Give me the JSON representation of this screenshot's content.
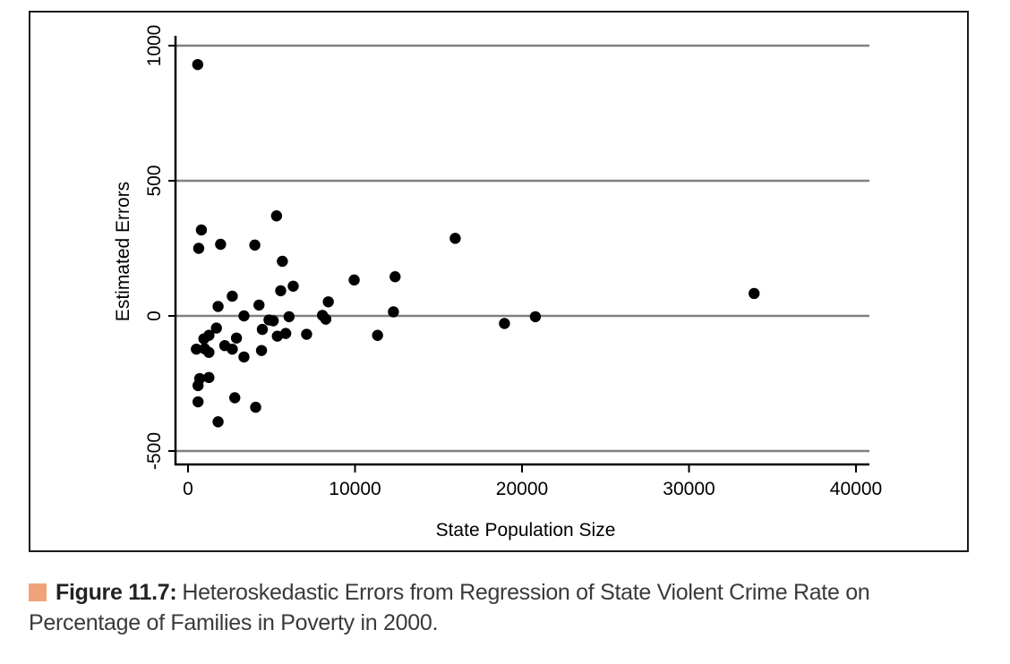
{
  "chart_data": {
    "type": "scatter",
    "xlabel": "State Population Size",
    "ylabel": "Estimated Errors",
    "xlim": [
      -500,
      41000
    ],
    "ylim": [
      -550,
      1030
    ],
    "xticks": [
      0,
      10000,
      20000,
      30000,
      40000
    ],
    "yticks": [
      -500,
      0,
      500,
      1000
    ],
    "xtick_labels": [
      "0",
      "10000",
      "20000",
      "30000",
      "40000"
    ],
    "ytick_labels": [
      "-500",
      "0",
      "500",
      "1000"
    ],
    "grid": "horizontal lines at y ticks",
    "legend": "none",
    "marker_color": "#000000",
    "grid_color": "#808080",
    "points": [
      {
        "x": 580,
        "y": 930
      },
      {
        "x": 5300,
        "y": 370
      },
      {
        "x": 800,
        "y": 318
      },
      {
        "x": 1950,
        "y": 265
      },
      {
        "x": 4000,
        "y": 262
      },
      {
        "x": 640,
        "y": 250
      },
      {
        "x": 16000,
        "y": 287
      },
      {
        "x": 5650,
        "y": 202
      },
      {
        "x": 12400,
        "y": 145
      },
      {
        "x": 9950,
        "y": 133
      },
      {
        "x": 6300,
        "y": 110
      },
      {
        "x": 5550,
        "y": 93
      },
      {
        "x": 33900,
        "y": 83
      },
      {
        "x": 2650,
        "y": 73
      },
      {
        "x": 8400,
        "y": 52
      },
      {
        "x": 4250,
        "y": 40
      },
      {
        "x": 1800,
        "y": 35
      },
      {
        "x": 12300,
        "y": 15
      },
      {
        "x": 3350,
        "y": 0
      },
      {
        "x": 8050,
        "y": 2
      },
      {
        "x": 6050,
        "y": -3
      },
      {
        "x": 20800,
        "y": -3
      },
      {
        "x": 4850,
        "y": -15
      },
      {
        "x": 5100,
        "y": -18
      },
      {
        "x": 8250,
        "y": -12
      },
      {
        "x": 18950,
        "y": -28
      },
      {
        "x": 1700,
        "y": -45
      },
      {
        "x": 4450,
        "y": -50
      },
      {
        "x": 5850,
        "y": -65
      },
      {
        "x": 7100,
        "y": -68
      },
      {
        "x": 5350,
        "y": -75
      },
      {
        "x": 11350,
        "y": -72
      },
      {
        "x": 1250,
        "y": -72
      },
      {
        "x": 2900,
        "y": -82
      },
      {
        "x": 950,
        "y": -85
      },
      {
        "x": 2200,
        "y": -110
      },
      {
        "x": 500,
        "y": -123
      },
      {
        "x": 1000,
        "y": -122
      },
      {
        "x": 2650,
        "y": -123
      },
      {
        "x": 1250,
        "y": -135
      },
      {
        "x": 4400,
        "y": -128
      },
      {
        "x": 3350,
        "y": -152
      },
      {
        "x": 700,
        "y": -232
      },
      {
        "x": 1250,
        "y": -228
      },
      {
        "x": 600,
        "y": -258
      },
      {
        "x": 2800,
        "y": -303
      },
      {
        "x": 600,
        "y": -318
      },
      {
        "x": 4050,
        "y": -338
      },
      {
        "x": 1800,
        "y": -392
      }
    ]
  },
  "caption": {
    "marker_color": "#f0a27a",
    "label": "Figure 11.7:",
    "text": "Heteroskedastic Errors from Regression of State Violent Crime Rate on Percentage of Families in Poverty in 2000."
  }
}
